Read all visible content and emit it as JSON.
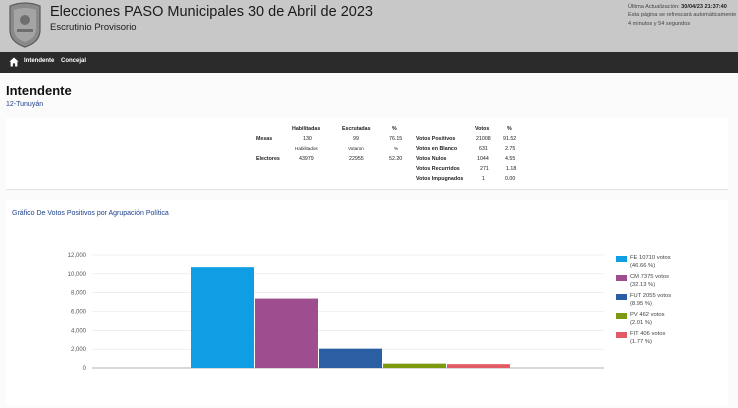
{
  "header": {
    "title": "Elecciones PASO Municipales 30 de Abril de 2023",
    "subtitle": "Escrutinio Provisorio",
    "update_label": "Última Actualización:",
    "update_time": "30/04/23 21:37:40",
    "refresh_line1": "Esta página se refrescará automáticamente",
    "refresh_line2": "4 minutos y 54 segundos"
  },
  "nav": {
    "items": [
      "Intendente",
      "Concejal"
    ]
  },
  "section": {
    "title": "Intendente",
    "district": "12-Tunuyán"
  },
  "mesas": {
    "headers": [
      "Habilitadas",
      "Escrutadas",
      "%"
    ],
    "label": "Mesas",
    "values": [
      "130",
      "99",
      "76.15"
    ]
  },
  "electores": {
    "headers": [
      "Habilitados",
      "Votaron",
      "%"
    ],
    "label": "Electores",
    "values": [
      "43979",
      "22955",
      "52.20"
    ]
  },
  "votos": {
    "headers": [
      "Votos",
      "%"
    ],
    "rows": [
      {
        "label": "Votos Positivos",
        "votos": "21008",
        "pct": "91.52"
      },
      {
        "label": "Votos en Blanco",
        "votos": "631",
        "pct": "2.75"
      },
      {
        "label": "Votos Nulos",
        "votos": "1044",
        "pct": "4.55"
      },
      {
        "label": "Votos Recurridos",
        "votos": "271",
        "pct": "1.18"
      },
      {
        "label": "Votos Impugnados",
        "votos": "1",
        "pct": "0.00"
      }
    ]
  },
  "chart_title": "Gráfico De Votos Positivos por Agrupación Política",
  "chart_data": {
    "type": "bar",
    "categories": [
      "FE",
      "CM",
      "FUT",
      "PV",
      "FIT"
    ],
    "values": [
      10710,
      7375,
      2055,
      462,
      406
    ],
    "ylim": [
      0,
      12000
    ],
    "yticks": [
      "0",
      "2,000",
      "4,000",
      "6,000",
      "8,000",
      "10,000",
      "12,000"
    ],
    "colors": [
      "#0f9ee3",
      "#9e4e8f",
      "#2b5fa4",
      "#7c9a10",
      "#e25a63"
    ],
    "legend_position": "right",
    "legend": [
      {
        "line1": "FE 10710 votos",
        "line2": "(46.66 %)"
      },
      {
        "line1": "CM 7375 votos",
        "line2": "(32.13 %)"
      },
      {
        "line1": "FUT 2055 votos",
        "line2": "(8.95 %)"
      },
      {
        "line1": "PV 462 votos",
        "line2": "(2.01 %)"
      },
      {
        "line1": "FIT 406 votos",
        "line2": "(1.77 %)"
      }
    ]
  }
}
